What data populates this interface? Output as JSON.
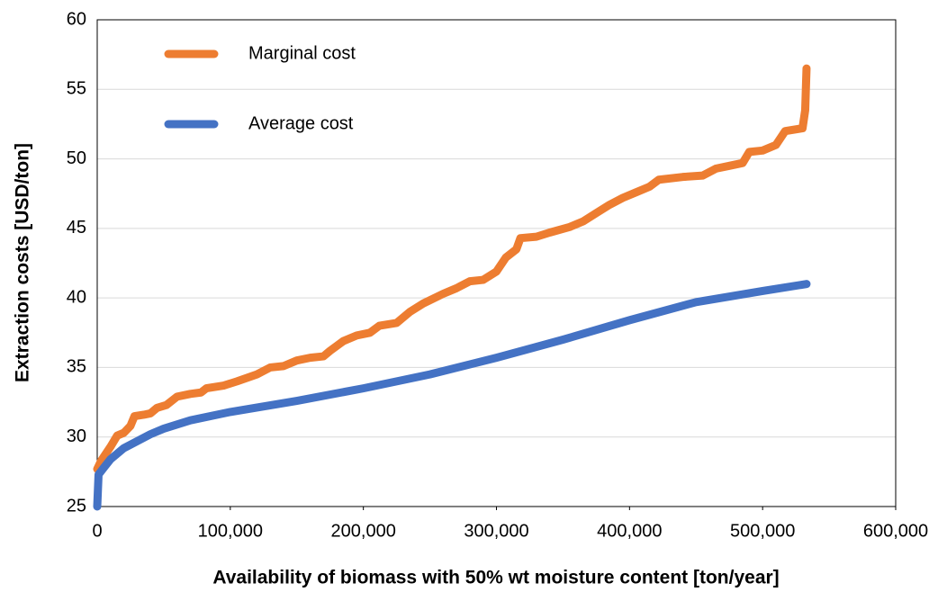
{
  "chart_data": {
    "type": "line",
    "x_label": "Availability of biomass with 50% wt moisture content [ton/year]",
    "y_label": "Extraction costs [USD/ton]",
    "xlim": [
      0,
      600000
    ],
    "xticks": [
      0,
      {
        "value": 100000,
        "label": "100,000"
      },
      {
        "value": 200000,
        "label": "200,000"
      },
      {
        "value": 300000,
        "label": "300,000"
      },
      {
        "value": 400000,
        "label": "400,000"
      },
      {
        "value": 500000,
        "label": "500,000"
      },
      {
        "value": 600000,
        "label": "600,000"
      }
    ],
    "ylim": [
      25,
      60
    ],
    "yticks": [
      25,
      30,
      35,
      40,
      45,
      50,
      55,
      60
    ],
    "grid": true,
    "legend": "upper left",
    "series": [
      {
        "name": "Marginal cost",
        "color": "#ed7d31",
        "x": [
          0,
          3000,
          10000,
          15000,
          20000,
          25000,
          28000,
          35000,
          40000,
          45000,
          52000,
          60000,
          70000,
          78000,
          82000,
          95000,
          105000,
          120000,
          130000,
          140000,
          150000,
          160000,
          170000,
          175000,
          185000,
          195000,
          205000,
          212000,
          225000,
          235000,
          245000,
          260000,
          270000,
          280000,
          290000,
          300000,
          307000,
          315000,
          318000,
          330000,
          340000,
          355000,
          365000,
          375000,
          385000,
          395000,
          405000,
          415000,
          422000,
          440000,
          455000,
          465000,
          475000,
          485000,
          490000,
          500000,
          510000,
          517000,
          530000,
          532000,
          533000
        ],
        "values": [
          27.7,
          28.3,
          29.3,
          30.1,
          30.3,
          30.8,
          31.5,
          31.6,
          31.7,
          32.1,
          32.3,
          32.9,
          33.1,
          33.2,
          33.5,
          33.7,
          34.0,
          34.5,
          35.0,
          35.1,
          35.5,
          35.7,
          35.8,
          36.2,
          36.9,
          37.3,
          37.5,
          38.0,
          38.2,
          39.0,
          39.6,
          40.3,
          40.7,
          41.2,
          41.3,
          41.9,
          42.9,
          43.5,
          44.3,
          44.4,
          44.7,
          45.1,
          45.5,
          46.1,
          46.7,
          47.2,
          47.6,
          48.0,
          48.5,
          48.7,
          48.8,
          49.3,
          49.5,
          49.7,
          50.5,
          50.6,
          51.0,
          52.0,
          52.2,
          53.5,
          56.5
        ]
      },
      {
        "name": "Average cost",
        "color": "#4472c4",
        "x": [
          0,
          1000,
          5000,
          10000,
          20000,
          30000,
          40000,
          50000,
          70000,
          100000,
          150000,
          200000,
          250000,
          300000,
          350000,
          400000,
          450000,
          500000,
          533000
        ],
        "values": [
          25,
          27.3,
          27.8,
          28.4,
          29.2,
          29.7,
          30.2,
          30.6,
          31.2,
          31.8,
          32.6,
          33.5,
          34.5,
          35.7,
          37.0,
          38.4,
          39.7,
          40.5,
          41.0
        ]
      }
    ]
  }
}
